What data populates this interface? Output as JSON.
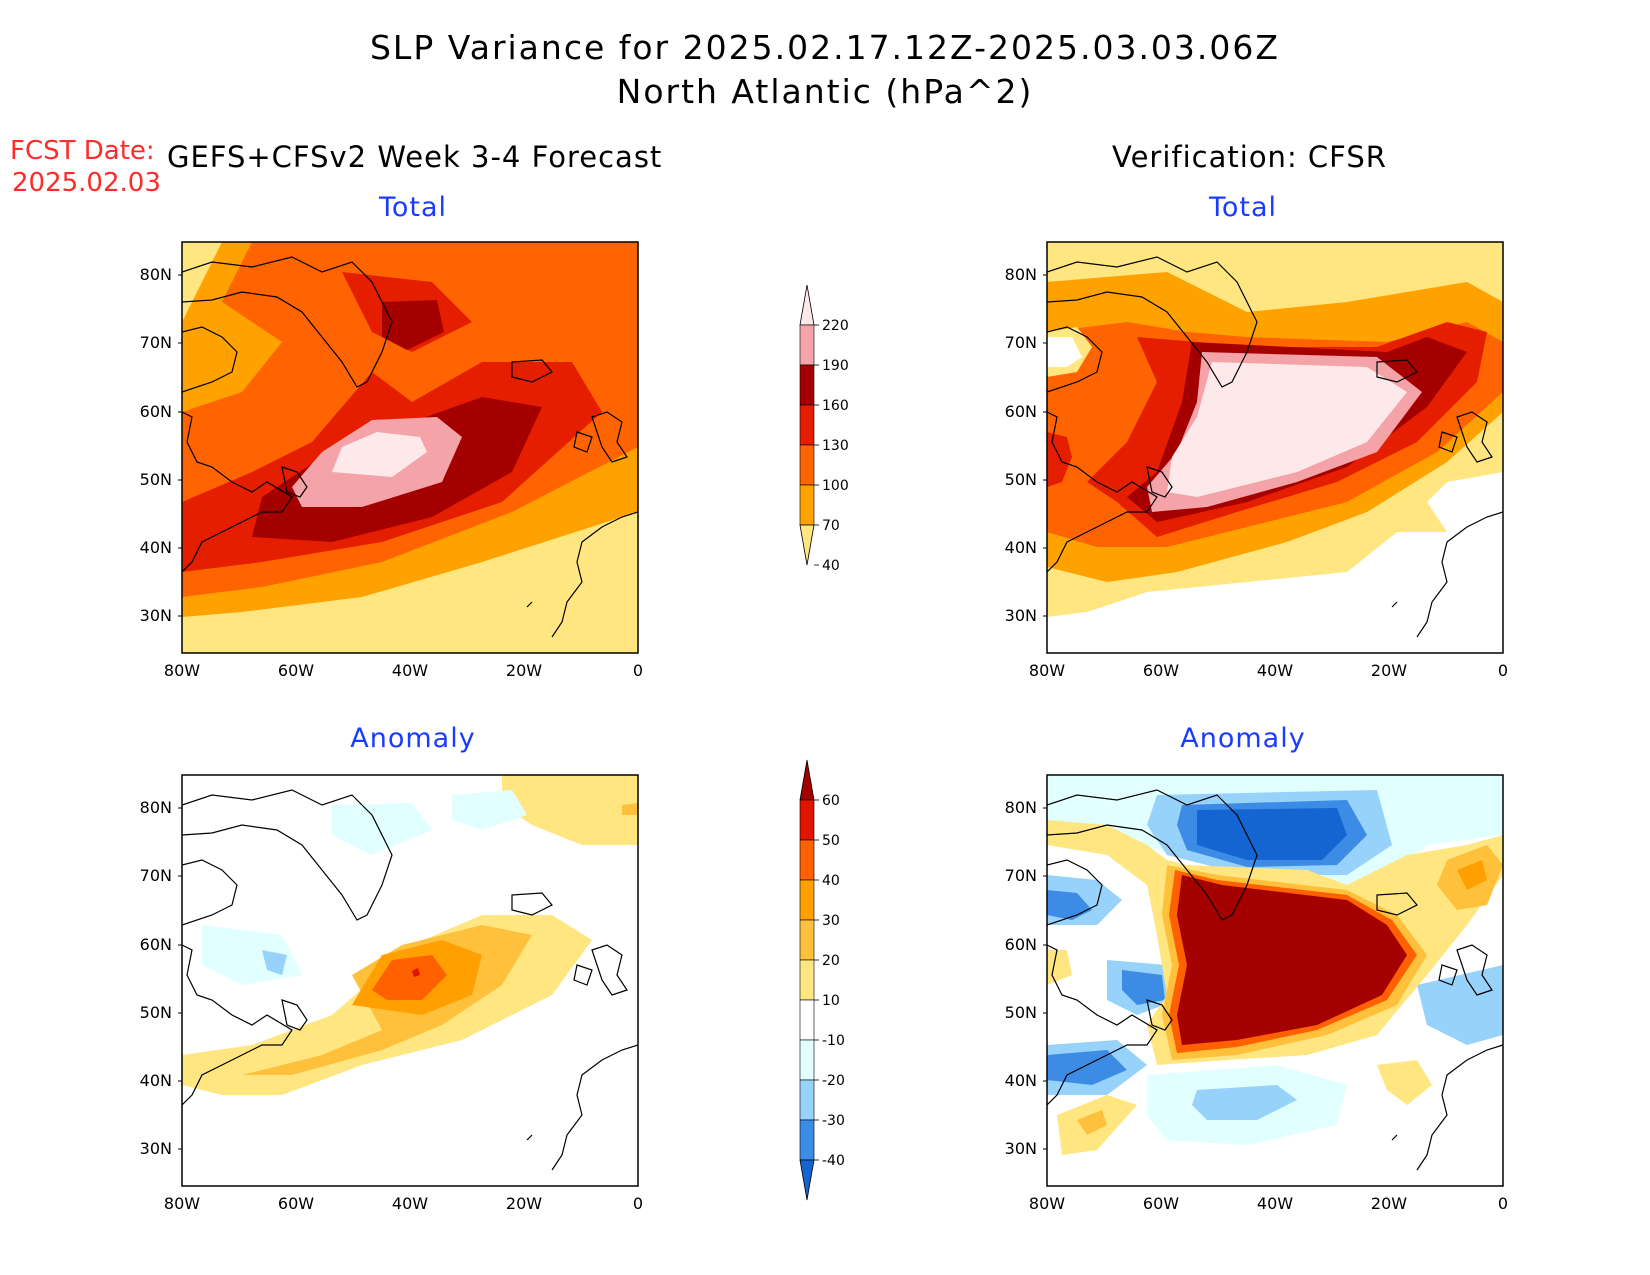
{
  "title": {
    "line1": "SLP Variance for 2025.02.17.12Z-2025.03.03.06Z",
    "line2": "North Atlantic (hPa^2)"
  },
  "fcst_date": {
    "label": "FCST Date:",
    "value": "2025.02.03"
  },
  "columns": {
    "left": "GEFS+CFSv2 Week 3-4 Forecast",
    "right": "Verification: CFSR"
  },
  "panels": {
    "total_forecast": "Total",
    "total_verification": "Total",
    "anomaly_forecast": "Anomaly",
    "anomaly_verification": "Anomaly"
  },
  "axes": {
    "lat_labels": [
      "30N",
      "40N",
      "50N",
      "60N",
      "70N",
      "80N"
    ],
    "lon_labels": [
      "80W",
      "60W",
      "40W",
      "20W",
      "0"
    ]
  },
  "colorbars": {
    "total": {
      "levels": [
        "40",
        "70",
        "100",
        "130",
        "160",
        "190",
        "220"
      ],
      "colors": [
        "#ffe680",
        "#ffa200",
        "#ff6400",
        "#e51e00",
        "#a50000",
        "#f4a3a8",
        "#fde8ea"
      ]
    },
    "anomaly": {
      "levels": [
        "-40",
        "-30",
        "-20",
        "-10",
        "10",
        "20",
        "30",
        "40",
        "50",
        "60"
      ],
      "colors": [
        "#1464d2",
        "#3c8ce6",
        "#96d2fa",
        "#e1ffff",
        "#ffffff",
        "#ffe680",
        "#ffc03c",
        "#ffa000",
        "#ff6000",
        "#e11400",
        "#a50000"
      ]
    }
  }
}
